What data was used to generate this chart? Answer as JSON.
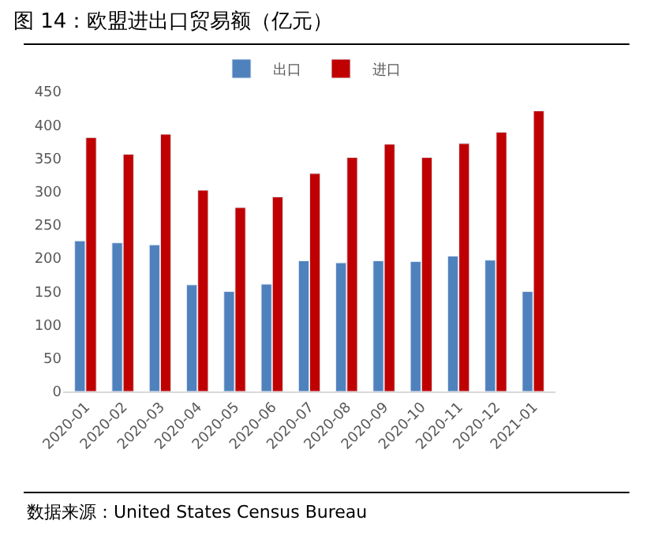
{
  "chart_data": {
    "type": "bar",
    "title": "图 14：欧盟进出口贸易额（亿元）",
    "categories": [
      "2020-01",
      "2020-02",
      "2020-03",
      "2020-04",
      "2020-05",
      "2020-06",
      "2020-07",
      "2020-08",
      "2020-09",
      "2020-10",
      "2020-11",
      "2020-12",
      "2021-01"
    ],
    "series": [
      {
        "name": "出口",
        "color": "#4f81bd",
        "values": [
          226,
          223,
          220,
          160,
          150,
          161,
          196,
          193,
          196,
          195,
          203,
          197,
          150
        ]
      },
      {
        "name": "进口",
        "color": "#c00000",
        "values": [
          381,
          356,
          386,
          302,
          276,
          292,
          327,
          351,
          371,
          351,
          372,
          389,
          421
        ]
      }
    ],
    "ylim": [
      0,
      450
    ],
    "yticks": [
      0,
      50,
      100,
      150,
      200,
      250,
      300,
      350,
      400,
      450
    ],
    "legend": "top",
    "annotations": [
      "数据来源：United States Census Bureau"
    ]
  }
}
